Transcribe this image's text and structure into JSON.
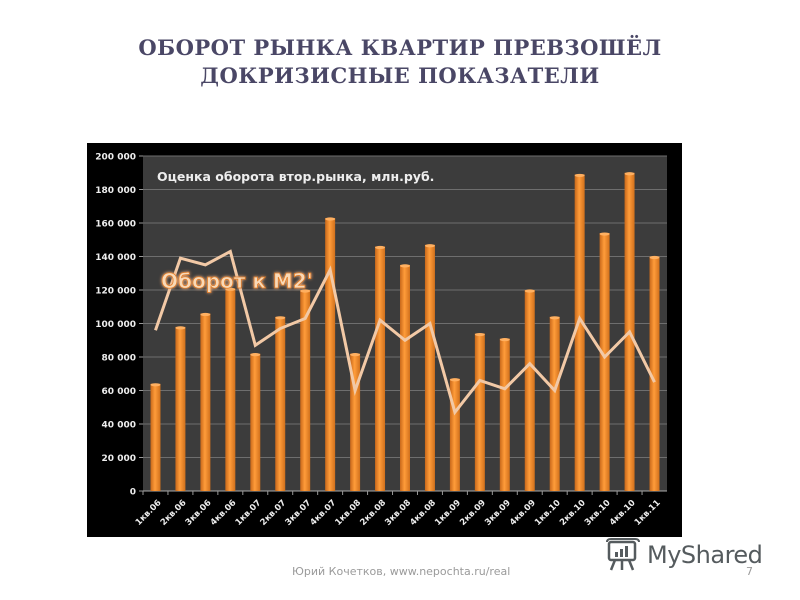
{
  "slide": {
    "title_line1": "ОБОРОТ РЫНКА КВАРТИР ПРЕВЗОШЁЛ",
    "title_line2": "ДОКРИЗИСНЫЕ ПОКАЗАТЕЛИ",
    "footer": "Юрий Кочетков, www.nepochta.ru/real",
    "page_number": "7",
    "watermark": "MyShared"
  },
  "colors": {
    "bar": "#f08a24",
    "bar_highlight": "#ffb061",
    "line": "#f2c9a6",
    "plot_bg": "#3c3c3c",
    "frame_bg": "#000000",
    "gridline": "#6e6e6e",
    "title": "#4a4766",
    "line_label": "#f5a04a"
  },
  "chart_data": {
    "type": "bar",
    "title": "Оценка оборота втор.рынка, млн.руб.",
    "xlabel": "",
    "ylabel": "",
    "ylim": [
      0,
      200000
    ],
    "yticks": [
      0,
      20000,
      40000,
      60000,
      80000,
      100000,
      120000,
      140000,
      160000,
      180000,
      200000
    ],
    "ytick_labels": [
      "0",
      "20 000",
      "40 000",
      "60 000",
      "80 000",
      "100 000",
      "120 000",
      "140 000",
      "160 000",
      "180 000",
      "200 000"
    ],
    "grid": true,
    "legend": "none",
    "annotations": [
      "Оборот к М2'"
    ],
    "categories": [
      "1кв.06",
      "2кв.06",
      "3кв.06",
      "4кв.06",
      "1кв.07",
      "2кв.07",
      "3кв.07",
      "4кв.07",
      "1кв.08",
      "2кв.08",
      "3кв.08",
      "4кв.08",
      "1кв.09",
      "2кв.09",
      "3кв.09",
      "4кв.09",
      "1кв.10",
      "2кв.10",
      "3кв.10",
      "4кв.10",
      "1кв.11"
    ],
    "series": [
      {
        "name": "Оценка оборота втор.рынка, млн.руб.",
        "type": "bar",
        "values": [
          64000,
          98000,
          106000,
          121000,
          82000,
          104000,
          120000,
          163000,
          82000,
          146000,
          135000,
          147000,
          67000,
          94000,
          91000,
          120000,
          104000,
          189000,
          154000,
          190000,
          140000
        ]
      },
      {
        "name": "Оборот к М2'",
        "type": "line",
        "values": [
          96000,
          139000,
          135000,
          143000,
          87000,
          97000,
          103000,
          132000,
          60000,
          102000,
          90000,
          100000,
          47000,
          66000,
          61000,
          76000,
          60000,
          103000,
          80000,
          95000,
          65000
        ]
      }
    ]
  }
}
